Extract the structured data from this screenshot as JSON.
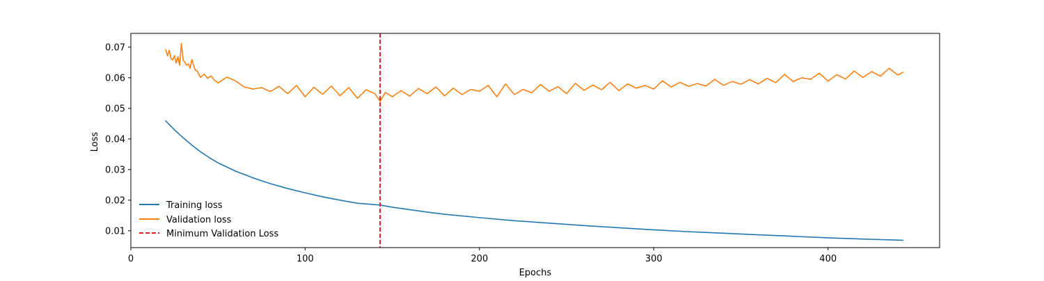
{
  "chart_data": {
    "type": "line",
    "xlabel": "Epochs",
    "ylabel": "Loss",
    "xlim": [
      0,
      464
    ],
    "ylim": [
      0.0045,
      0.0745
    ],
    "xticks": [
      0,
      100,
      200,
      300,
      400
    ],
    "yticks": [
      0.01,
      0.02,
      0.03,
      0.04,
      0.05,
      0.06,
      0.07
    ],
    "x_tick_labels": [
      "0",
      "100",
      "200",
      "300",
      "400"
    ],
    "y_tick_labels": [
      "0.01",
      "0.02",
      "0.03",
      "0.04",
      "0.05",
      "0.06",
      "0.07"
    ],
    "grid": false,
    "legend_position": "lower-left",
    "series": [
      {
        "name": "Training loss",
        "color": "#1f77b4",
        "x": [
          20,
          25,
          30,
          35,
          40,
          45,
          50,
          60,
          70,
          80,
          90,
          100,
          110,
          120,
          130,
          143,
          150,
          160,
          170,
          180,
          200,
          220,
          240,
          260,
          280,
          300,
          320,
          340,
          360,
          380,
          400,
          420,
          443
        ],
        "y": [
          0.0459,
          0.043,
          0.0404,
          0.038,
          0.0358,
          0.0339,
          0.0322,
          0.0295,
          0.0273,
          0.0254,
          0.0238,
          0.0224,
          0.0211,
          0.02,
          0.019,
          0.0184,
          0.0177,
          0.0169,
          0.0161,
          0.0154,
          0.0143,
          0.0133,
          0.0125,
          0.0117,
          0.011,
          0.0103,
          0.0097,
          0.0092,
          0.0087,
          0.0082,
          0.0077,
          0.0073,
          0.0069
        ]
      },
      {
        "name": "Validation loss",
        "color": "#ff7f0e",
        "x": [
          20,
          21,
          22,
          23,
          24,
          25,
          26,
          27,
          28,
          29,
          30,
          31,
          32,
          33,
          34,
          35,
          36,
          37,
          38,
          40,
          42,
          44,
          46,
          48,
          50,
          55,
          60,
          65,
          70,
          75,
          80,
          85,
          90,
          95,
          100,
          105,
          110,
          115,
          120,
          125,
          130,
          135,
          140,
          143,
          146,
          150,
          155,
          160,
          165,
          170,
          175,
          180,
          185,
          190,
          195,
          200,
          205,
          210,
          215,
          220,
          225,
          230,
          235,
          240,
          245,
          250,
          255,
          260,
          265,
          270,
          275,
          280,
          285,
          290,
          295,
          300,
          305,
          310,
          315,
          320,
          325,
          330,
          335,
          340,
          345,
          350,
          355,
          360,
          365,
          370,
          375,
          380,
          385,
          390,
          395,
          400,
          405,
          410,
          415,
          420,
          425,
          430,
          435,
          440,
          443
        ],
        "y": [
          0.0692,
          0.0672,
          0.069,
          0.0663,
          0.0658,
          0.0672,
          0.0648,
          0.0669,
          0.0641,
          0.0712,
          0.0658,
          0.065,
          0.0641,
          0.0645,
          0.0631,
          0.066,
          0.064,
          0.0625,
          0.0622,
          0.0601,
          0.0612,
          0.0598,
          0.0606,
          0.0592,
          0.0583,
          0.0602,
          0.059,
          0.057,
          0.0563,
          0.0568,
          0.0555,
          0.0572,
          0.0548,
          0.0575,
          0.0538,
          0.0569,
          0.0546,
          0.0573,
          0.0541,
          0.0568,
          0.0533,
          0.0561,
          0.0548,
          0.0523,
          0.0552,
          0.0538,
          0.0558,
          0.054,
          0.0565,
          0.0548,
          0.057,
          0.0541,
          0.0566,
          0.0545,
          0.0562,
          0.0556,
          0.0575,
          0.0538,
          0.058,
          0.0545,
          0.0562,
          0.0551,
          0.0578,
          0.0556,
          0.0571,
          0.0548,
          0.0582,
          0.0559,
          0.0576,
          0.0561,
          0.0585,
          0.0558,
          0.058,
          0.0566,
          0.0575,
          0.0563,
          0.059,
          0.057,
          0.0585,
          0.0572,
          0.0581,
          0.0573,
          0.0595,
          0.0575,
          0.0588,
          0.0579,
          0.0594,
          0.058,
          0.0598,
          0.0584,
          0.0611,
          0.0588,
          0.06,
          0.0595,
          0.0615,
          0.0589,
          0.061,
          0.0596,
          0.0622,
          0.0601,
          0.062,
          0.0605,
          0.0631,
          0.0609,
          0.0618
        ]
      }
    ],
    "vline": {
      "name": "Minimum Validation Loss",
      "x": 143,
      "color": "#e41a1c",
      "style": "dashed"
    }
  }
}
